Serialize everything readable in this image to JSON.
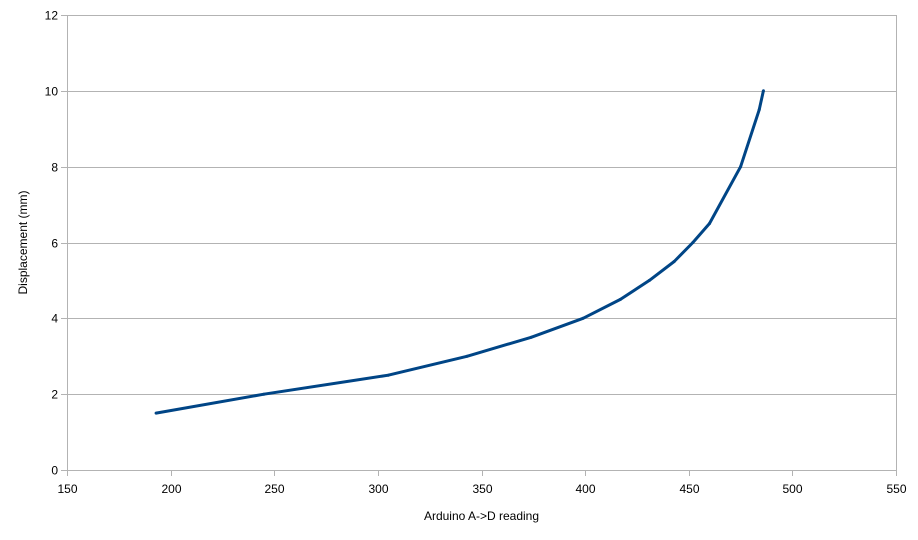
{
  "chart_data": {
    "type": "line",
    "title": "",
    "xlabel": "Arduino A->D reading",
    "ylabel": "Displacement (mm)",
    "xlim": [
      150,
      550
    ],
    "ylim": [
      0,
      12
    ],
    "xticks": [
      150,
      200,
      250,
      300,
      350,
      400,
      450,
      500,
      550
    ],
    "yticks": [
      0,
      2,
      4,
      6,
      8,
      10,
      12
    ],
    "grid": "horizontal",
    "legend": "none",
    "colors": {
      "series_line": "#004586",
      "gridline": "#b3b3b3",
      "axis": "#b3b3b3"
    },
    "series": [
      {
        "points": [
          {
            "x": 193,
            "y": 1.5
          },
          {
            "x": 245,
            "y": 2.0
          },
          {
            "x": 305,
            "y": 2.5
          },
          {
            "x": 343,
            "y": 3.0
          },
          {
            "x": 374,
            "y": 3.5
          },
          {
            "x": 399,
            "y": 4.0
          },
          {
            "x": 417,
            "y": 4.5
          },
          {
            "x": 431,
            "y": 5.0
          },
          {
            "x": 443,
            "y": 5.5
          },
          {
            "x": 452,
            "y": 6.0
          },
          {
            "x": 460,
            "y": 6.5
          },
          {
            "x": 475,
            "y": 8.0
          },
          {
            "x": 484,
            "y": 9.5
          },
          {
            "x": 486,
            "y": 10.0
          }
        ]
      }
    ]
  }
}
